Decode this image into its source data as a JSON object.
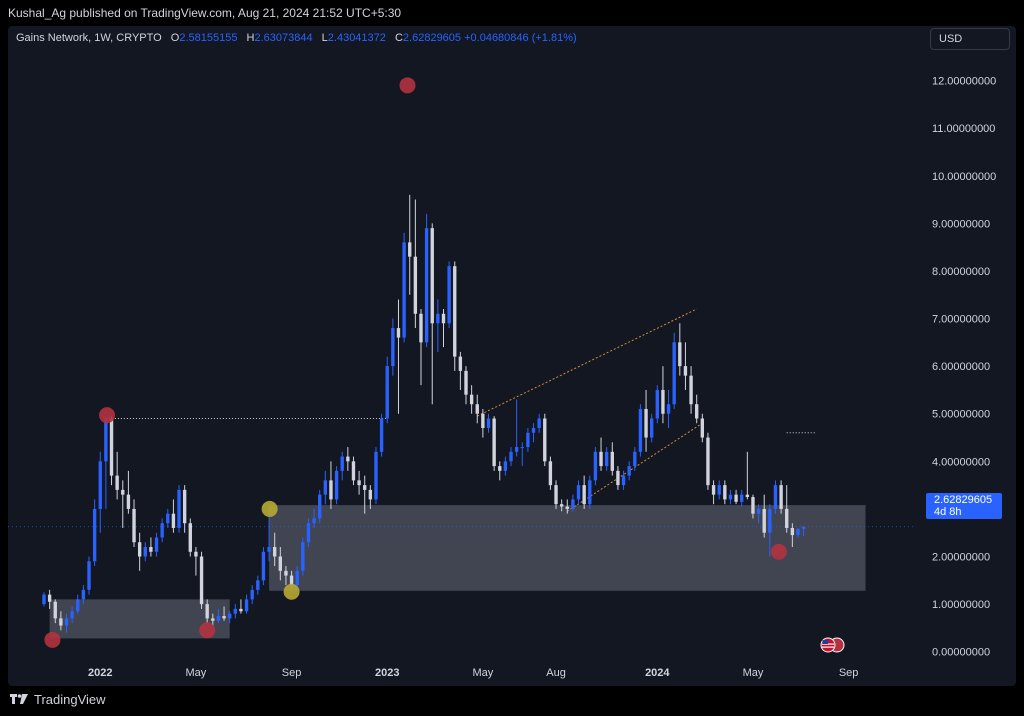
{
  "publisher_line": "Kushal_Ag published on TradingView.com, Aug 21, 2024 21:52 UTC+5:30",
  "legend": {
    "symbol": "Gains Network, 1W, CRYPTO",
    "o_label": "O",
    "o_value": "2.58155155",
    "h_label": "H",
    "h_value": "2.63073844",
    "l_label": "L",
    "l_value": "2.43041372",
    "c_label": "C",
    "c_value": "2.62829605",
    "change": "+0.04680846 (+1.81%)"
  },
  "currency": "USD",
  "price_tag": {
    "price": "2.62829605",
    "countdown": "4d 8h"
  },
  "footer_brand": "TradingView",
  "colors": {
    "background": "#131722",
    "up": "#2962ff",
    "down": "#d1d4dc",
    "zone": "#4a4e5a",
    "marker_red": "#b2323f",
    "marker_yellow": "#b8a832",
    "channel": "#d88a3c"
  },
  "chart_data": {
    "type": "candlestick",
    "yticks": [
      "12.00000000",
      "11.00000000",
      "10.00000000",
      "9.00000000",
      "8.00000000",
      "7.00000000",
      "6.00000000",
      "5.00000000",
      "4.00000000",
      "3.00000000",
      "2.00000000",
      "1.00000000",
      "0.00000000"
    ],
    "ytick_values": [
      12,
      11,
      10,
      9,
      8,
      7,
      6,
      5,
      4,
      3,
      2,
      1,
      0
    ],
    "ylim": [
      -0.3,
      12.6
    ],
    "xlim": [
      0,
      150
    ],
    "xticks": [
      {
        "label": "2022",
        "x": 10,
        "year": true
      },
      {
        "label": "May",
        "x": 27,
        "year": false
      },
      {
        "label": "Sep",
        "x": 44,
        "year": false
      },
      {
        "label": "2023",
        "x": 61,
        "year": true
      },
      {
        "label": "May",
        "x": 78,
        "year": false
      },
      {
        "label": "Aug",
        "x": 91,
        "year": false
      },
      {
        "label": "2024",
        "x": 109,
        "year": true
      },
      {
        "label": "May",
        "x": 126,
        "year": false
      },
      {
        "label": "Sep",
        "x": 143,
        "year": false
      }
    ],
    "candles": [
      [
        0,
        1.0,
        1.25,
        0.95,
        1.2
      ],
      [
        1,
        1.2,
        1.3,
        0.9,
        1.05
      ],
      [
        2,
        1.05,
        1.1,
        0.6,
        0.7
      ],
      [
        3,
        0.7,
        0.85,
        0.45,
        0.55
      ],
      [
        4,
        0.55,
        0.8,
        0.4,
        0.7
      ],
      [
        5,
        0.7,
        0.95,
        0.6,
        0.85
      ],
      [
        6,
        0.85,
        1.2,
        0.8,
        1.1
      ],
      [
        7,
        1.1,
        1.4,
        1.0,
        1.3
      ],
      [
        8,
        1.3,
        2.0,
        1.2,
        1.9
      ],
      [
        9,
        1.9,
        3.2,
        1.8,
        3.0
      ],
      [
        10,
        3.0,
        4.2,
        2.5,
        4.0
      ],
      [
        11,
        4.0,
        4.95,
        3.0,
        4.9
      ],
      [
        12,
        4.9,
        4.95,
        3.5,
        3.7
      ],
      [
        13,
        3.7,
        4.2,
        3.2,
        3.4
      ],
      [
        14,
        3.4,
        3.6,
        2.6,
        3.3
      ],
      [
        15,
        3.3,
        3.8,
        2.9,
        3.0
      ],
      [
        16,
        3.0,
        3.2,
        2.2,
        2.3
      ],
      [
        17,
        2.3,
        2.5,
        1.7,
        2.0
      ],
      [
        18,
        2.0,
        2.3,
        1.9,
        2.2
      ],
      [
        19,
        2.2,
        2.4,
        2.0,
        2.1
      ],
      [
        20,
        2.1,
        2.5,
        2.0,
        2.4
      ],
      [
        21,
        2.4,
        2.8,
        2.3,
        2.7
      ],
      [
        22,
        2.7,
        3.0,
        2.6,
        2.9
      ],
      [
        23,
        2.9,
        3.2,
        2.5,
        2.6
      ],
      [
        24,
        2.6,
        3.5,
        2.5,
        3.4
      ],
      [
        25,
        3.4,
        3.5,
        2.5,
        2.7
      ],
      [
        26,
        2.7,
        2.8,
        2.0,
        2.1
      ],
      [
        27,
        2.1,
        2.2,
        1.6,
        2.0
      ],
      [
        28,
        2.0,
        2.1,
        0.9,
        1.0
      ],
      [
        29,
        1.0,
        1.1,
        0.6,
        0.7
      ],
      [
        30,
        0.7,
        0.8,
        0.55,
        0.65
      ],
      [
        31,
        0.65,
        0.9,
        0.6,
        0.75
      ],
      [
        32,
        0.75,
        0.95,
        0.65,
        0.7
      ],
      [
        33,
        0.7,
        0.85,
        0.6,
        0.8
      ],
      [
        34,
        0.8,
        1.0,
        0.7,
        0.9
      ],
      [
        35,
        0.9,
        1.1,
        0.8,
        0.85
      ],
      [
        36,
        0.85,
        1.2,
        0.8,
        1.1
      ],
      [
        37,
        1.1,
        1.4,
        1.0,
        1.3
      ],
      [
        38,
        1.3,
        1.6,
        1.2,
        1.5
      ],
      [
        39,
        1.5,
        2.2,
        1.4,
        2.1
      ],
      [
        40,
        2.1,
        3.0,
        1.9,
        2.2
      ],
      [
        41,
        2.2,
        2.5,
        1.8,
        2.0
      ],
      [
        42,
        2.0,
        2.2,
        1.5,
        1.7
      ],
      [
        43,
        1.7,
        1.8,
        1.4,
        1.6
      ],
      [
        44,
        1.6,
        1.7,
        1.35,
        1.4
      ],
      [
        45,
        1.4,
        1.8,
        1.35,
        1.7
      ],
      [
        46,
        1.7,
        2.4,
        1.6,
        2.3
      ],
      [
        47,
        2.3,
        2.8,
        2.2,
        2.7
      ],
      [
        48,
        2.7,
        3.0,
        2.6,
        2.8
      ],
      [
        49,
        2.8,
        3.4,
        2.7,
        3.3
      ],
      [
        50,
        3.3,
        3.8,
        3.1,
        3.6
      ],
      [
        51,
        3.6,
        4.0,
        3.0,
        3.2
      ],
      [
        52,
        3.2,
        3.9,
        3.1,
        3.8
      ],
      [
        53,
        3.8,
        4.2,
        3.6,
        4.1
      ],
      [
        54,
        4.1,
        4.3,
        3.8,
        4.0
      ],
      [
        55,
        4.0,
        4.1,
        3.5,
        3.6
      ],
      [
        56,
        3.6,
        3.8,
        3.3,
        3.5
      ],
      [
        57,
        3.5,
        3.7,
        2.9,
        3.4
      ],
      [
        58,
        3.4,
        3.5,
        3.0,
        3.2
      ],
      [
        59,
        3.2,
        4.3,
        3.1,
        4.2
      ],
      [
        60,
        4.2,
        5.0,
        4.1,
        4.9
      ],
      [
        61,
        4.9,
        6.2,
        4.8,
        6.0
      ],
      [
        62,
        6.0,
        7.0,
        5.8,
        6.8
      ],
      [
        63,
        6.8,
        7.4,
        5.0,
        6.6
      ],
      [
        64,
        6.6,
        8.8,
        6.5,
        8.6
      ],
      [
        65,
        8.6,
        9.6,
        7.5,
        8.3
      ],
      [
        66,
        8.3,
        9.5,
        6.8,
        7.1
      ],
      [
        67,
        7.1,
        7.2,
        5.6,
        6.5
      ],
      [
        68,
        6.5,
        9.2,
        6.4,
        8.9
      ],
      [
        69,
        8.9,
        9.0,
        5.2,
        6.9
      ],
      [
        70,
        6.9,
        7.4,
        6.3,
        7.1
      ],
      [
        71,
        7.1,
        7.2,
        6.4,
        6.9
      ],
      [
        72,
        6.9,
        8.2,
        6.8,
        8.1
      ],
      [
        73,
        8.1,
        8.2,
        5.9,
        6.2
      ],
      [
        74,
        6.2,
        6.3,
        5.5,
        5.9
      ],
      [
        75,
        5.9,
        6.0,
        5.2,
        5.4
      ],
      [
        76,
        5.4,
        5.6,
        5.0,
        5.2
      ],
      [
        77,
        5.2,
        5.4,
        4.8,
        5.0
      ],
      [
        78,
        5.0,
        5.1,
        4.5,
        4.7
      ],
      [
        79,
        4.7,
        5.0,
        4.6,
        4.9
      ],
      [
        80,
        4.9,
        4.95,
        3.8,
        3.9
      ],
      [
        81,
        3.9,
        4.0,
        3.6,
        3.8
      ],
      [
        82,
        3.8,
        4.1,
        3.7,
        4.0
      ],
      [
        83,
        4.0,
        4.3,
        3.9,
        4.2
      ],
      [
        84,
        4.2,
        5.3,
        4.1,
        4.3
      ],
      [
        85,
        4.3,
        4.4,
        3.9,
        4.3
      ],
      [
        86,
        4.3,
        4.7,
        4.2,
        4.6
      ],
      [
        87,
        4.6,
        4.8,
        4.4,
        4.7
      ],
      [
        88,
        4.7,
        5.0,
        4.6,
        4.9
      ],
      [
        89,
        4.9,
        5.0,
        3.9,
        4.0
      ],
      [
        90,
        4.0,
        4.1,
        3.4,
        3.5
      ],
      [
        91,
        3.5,
        3.6,
        3.0,
        3.1
      ],
      [
        92,
        3.1,
        3.2,
        2.95,
        3.05
      ],
      [
        93,
        3.05,
        3.2,
        2.9,
        3.0
      ],
      [
        94,
        3.0,
        3.3,
        2.95,
        3.2
      ],
      [
        95,
        3.2,
        3.6,
        3.1,
        3.5
      ],
      [
        96,
        3.5,
        3.7,
        3.0,
        3.1
      ],
      [
        97,
        3.1,
        3.7,
        3.0,
        3.6
      ],
      [
        98,
        3.6,
        4.3,
        3.5,
        4.2
      ],
      [
        99,
        4.2,
        4.5,
        3.8,
        3.9
      ],
      [
        100,
        3.9,
        4.3,
        3.8,
        4.2
      ],
      [
        101,
        4.2,
        4.4,
        3.7,
        3.8
      ],
      [
        102,
        3.8,
        3.9,
        3.4,
        3.5
      ],
      [
        103,
        3.5,
        3.8,
        3.4,
        3.7
      ],
      [
        104,
        3.7,
        4.0,
        3.6,
        3.9
      ],
      [
        105,
        3.9,
        4.3,
        3.8,
        4.2
      ],
      [
        106,
        4.2,
        5.2,
        4.1,
        5.1
      ],
      [
        107,
        5.1,
        5.5,
        4.2,
        4.5
      ],
      [
        108,
        4.5,
        5.0,
        4.4,
        4.9
      ],
      [
        109,
        4.9,
        5.6,
        4.8,
        5.5
      ],
      [
        110,
        5.5,
        6.0,
        4.8,
        5.0
      ],
      [
        111,
        5.0,
        5.5,
        4.7,
        5.2
      ],
      [
        112,
        5.2,
        6.7,
        5.1,
        6.5
      ],
      [
        113,
        6.5,
        6.9,
        5.8,
        6.0
      ],
      [
        114,
        6.0,
        6.5,
        5.5,
        5.8
      ],
      [
        115,
        5.8,
        6.0,
        5.0,
        5.2
      ],
      [
        116,
        5.2,
        5.4,
        4.8,
        4.9
      ],
      [
        117,
        4.9,
        5.0,
        4.4,
        4.5
      ],
      [
        118,
        4.5,
        4.6,
        3.4,
        3.5
      ],
      [
        119,
        3.5,
        3.6,
        3.1,
        3.3
      ],
      [
        120,
        3.3,
        3.6,
        3.2,
        3.5
      ],
      [
        121,
        3.5,
        3.6,
        3.1,
        3.2
      ],
      [
        122,
        3.2,
        3.4,
        3.1,
        3.3
      ],
      [
        123,
        3.3,
        3.4,
        3.1,
        3.15
      ],
      [
        124,
        3.15,
        3.4,
        3.05,
        3.3
      ],
      [
        125,
        3.3,
        4.2,
        3.2,
        3.25
      ],
      [
        126,
        3.25,
        3.3,
        2.8,
        2.9
      ],
      [
        127,
        2.9,
        3.1,
        2.7,
        3.0
      ],
      [
        128,
        3.0,
        3.3,
        2.4,
        2.5
      ],
      [
        129,
        2.5,
        3.1,
        2.0,
        3.0
      ],
      [
        130,
        3.0,
        3.6,
        2.9,
        3.5
      ],
      [
        131,
        3.5,
        3.6,
        2.9,
        3.0
      ],
      [
        132,
        3.0,
        3.5,
        2.5,
        2.6
      ],
      [
        133,
        2.6,
        2.7,
        2.2,
        2.45
      ],
      [
        134,
        2.45,
        2.6,
        2.4,
        2.58
      ],
      [
        135,
        2.58155155,
        2.63073844,
        2.43041372,
        2.62829605
      ]
    ],
    "zones": [
      {
        "x0": 1,
        "x1": 33,
        "ylow": 0.28,
        "yhigh": 1.1
      },
      {
        "x0": 40,
        "x1": 146,
        "ylow": 1.28,
        "yhigh": 3.08
      }
    ],
    "markers": [
      {
        "x": 1.5,
        "y": 0.25,
        "color": "red"
      },
      {
        "x": 11.2,
        "y": 4.97,
        "color": "red"
      },
      {
        "x": 29.0,
        "y": 0.45,
        "color": "red"
      },
      {
        "x": 40.1,
        "y": 3.0,
        "color": "yellow"
      },
      {
        "x": 44.0,
        "y": 1.26,
        "color": "yellow"
      },
      {
        "x": 64.6,
        "y": 11.9,
        "color": "red"
      },
      {
        "x": 130.6,
        "y": 2.1,
        "color": "red"
      }
    ],
    "channel_lines": [
      {
        "x0": 77,
        "y0": 4.95,
        "x1": 116,
        "y1": 7.2
      },
      {
        "x0": 93,
        "y0": 2.95,
        "x1": 117,
        "y1": 4.8
      }
    ],
    "dotted_lines": [
      {
        "x0": 11,
        "x1": 61,
        "y": 4.9,
        "color": "#d1d4dc"
      },
      {
        "x0": 132,
        "x1": 137,
        "y": 4.6,
        "color": "#d1d4dc"
      }
    ],
    "last_price": 2.62829605
  }
}
